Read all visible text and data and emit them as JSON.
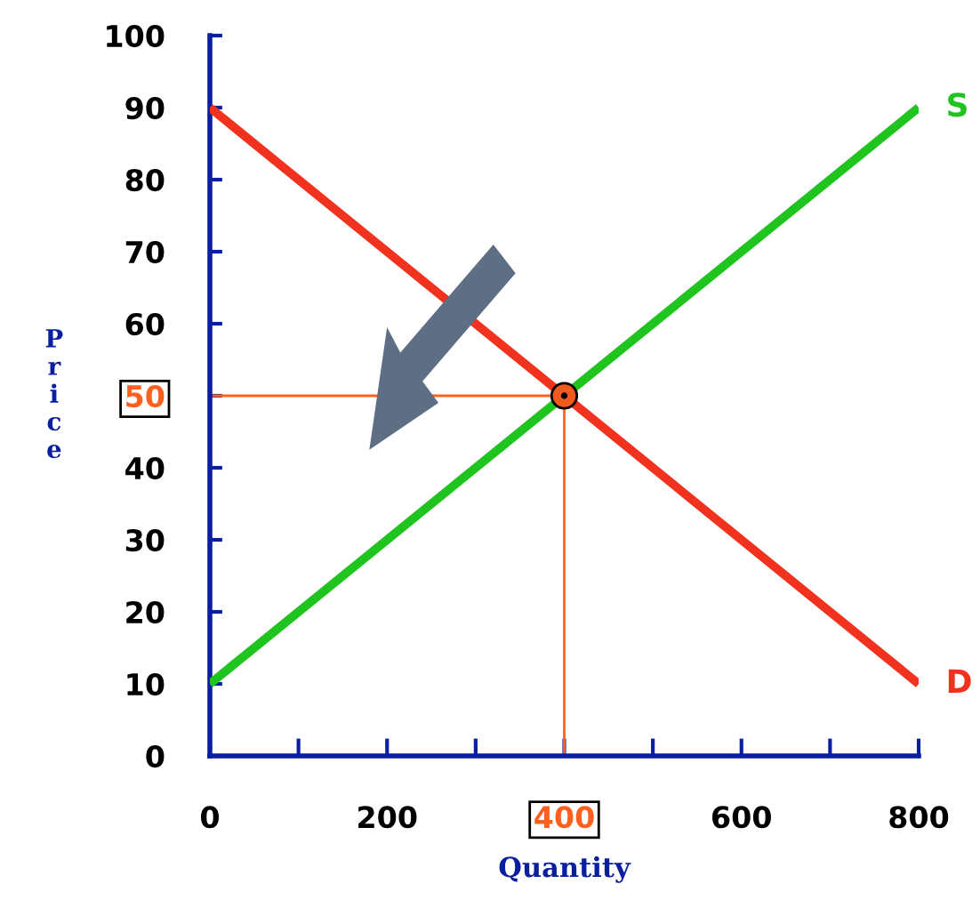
{
  "chart_data": {
    "type": "line",
    "xlabel": "Quantity",
    "ylabel": "Price",
    "xlim": [
      0,
      800
    ],
    "ylim": [
      0,
      100
    ],
    "xticks": [
      0,
      200,
      400,
      600,
      800
    ],
    "yticks": [
      0,
      10,
      20,
      30,
      40,
      50,
      60,
      70,
      80,
      90,
      100
    ],
    "series": [
      {
        "name": "S",
        "color": "#1fc41f",
        "x": [
          0,
          800
        ],
        "values": [
          10,
          90
        ]
      },
      {
        "name": "D",
        "color": "#f0321e",
        "x": [
          0,
          800
        ],
        "values": [
          90,
          10
        ]
      },
      {
        "type": "scatter",
        "color": "#f05a1e",
        "x": [
          400
        ],
        "values": [
          50
        ],
        "marker": "circle"
      }
    ],
    "ref_lines": [
      {
        "axis": "y",
        "value": 50,
        "color": "#ff6020"
      },
      {
        "axis": "x",
        "value": 400,
        "color": "#ff6020"
      }
    ],
    "grid": false
  }
}
